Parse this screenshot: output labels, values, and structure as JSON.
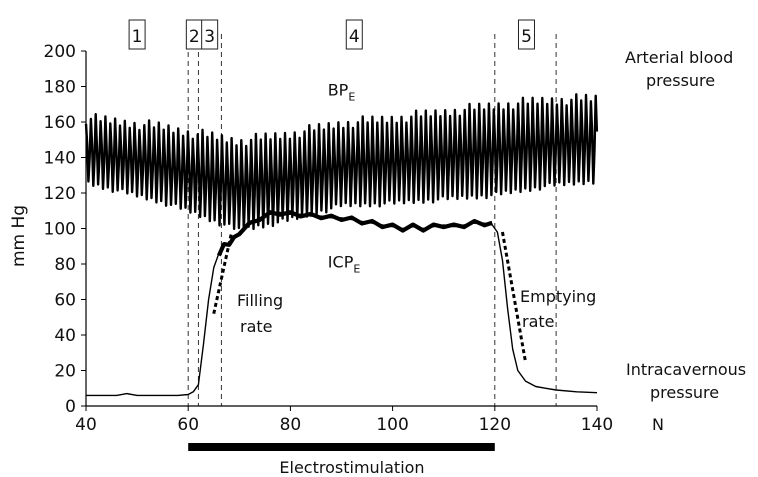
{
  "chart_data": {
    "type": "line",
    "ylabel": "mm Hg",
    "xlim": [
      40,
      140
    ],
    "ylim": [
      0,
      200
    ],
    "x_ticks": [
      "40",
      "60",
      "80",
      "100",
      "120",
      "140"
    ],
    "y_ticks": [
      "0",
      "20",
      "40",
      "60",
      "80",
      "100",
      "120",
      "140",
      "160",
      "180",
      "200"
    ],
    "phase_boundaries": [
      60,
      62,
      66.5,
      120,
      132
    ],
    "phases": [
      {
        "label": "1",
        "x": 50
      },
      {
        "label": "2",
        "x": 61.2
      },
      {
        "label": "3",
        "x": 64.2
      },
      {
        "label": "4",
        "x": 92.5
      },
      {
        "label": "5",
        "x": 126.2
      }
    ],
    "series": [
      {
        "name_main": "BP",
        "name_sub": "E",
        "label_x": 90,
        "label_y": 175,
        "mean": [
          [
            40,
            144
          ],
          [
            55,
            136
          ],
          [
            60,
            132
          ],
          [
            70,
            124
          ],
          [
            80,
            129
          ],
          [
            90,
            136
          ],
          [
            100,
            138
          ],
          [
            110,
            141
          ],
          [
            120,
            144
          ],
          [
            130,
            148
          ],
          [
            140,
            150
          ]
        ],
        "amplitude": [
          [
            40,
            18
          ],
          [
            60,
            22
          ],
          [
            70,
            25
          ],
          [
            90,
            23
          ],
          [
            120,
            25
          ],
          [
            140,
            23
          ]
        ]
      },
      {
        "name_main": "ICP",
        "name_sub": "E",
        "label_x": 90.5,
        "label_y": 78,
        "values": [
          [
            40,
            6
          ],
          [
            46,
            6
          ],
          [
            48,
            7
          ],
          [
            50,
            6
          ],
          [
            58,
            6
          ],
          [
            60,
            6.5
          ],
          [
            61,
            8
          ],
          [
            62,
            12
          ],
          [
            63,
            35
          ],
          [
            64,
            60
          ],
          [
            65,
            78
          ],
          [
            66,
            86
          ],
          [
            67,
            90
          ],
          [
            68,
            92
          ],
          [
            69,
            94
          ],
          [
            70,
            98
          ],
          [
            72,
            102
          ],
          [
            74,
            106
          ],
          [
            76,
            108
          ],
          [
            78,
            109
          ],
          [
            80,
            108
          ],
          [
            82,
            108
          ],
          [
            84,
            107
          ],
          [
            86,
            107
          ],
          [
            88,
            106
          ],
          [
            90,
            106
          ],
          [
            92,
            105
          ],
          [
            94,
            104
          ],
          [
            96,
            103
          ],
          [
            98,
            102
          ],
          [
            100,
            101
          ],
          [
            102,
            100
          ],
          [
            104,
            101
          ],
          [
            106,
            100
          ],
          [
            108,
            101
          ],
          [
            110,
            102
          ],
          [
            112,
            101
          ],
          [
            114,
            102
          ],
          [
            116,
            103
          ],
          [
            118,
            103
          ],
          [
            119.5,
            102
          ],
          [
            120.5,
            98
          ],
          [
            121.5,
            82
          ],
          [
            122.5,
            55
          ],
          [
            123.5,
            32
          ],
          [
            124.5,
            20
          ],
          [
            126,
            14
          ],
          [
            128,
            11
          ],
          [
            130,
            10
          ],
          [
            132,
            9
          ],
          [
            136,
            8
          ],
          [
            140,
            7.5
          ]
        ]
      }
    ],
    "rate_lines": [
      {
        "from": [
          65,
          52
        ],
        "to": [
          68.5,
          98
        ]
      },
      {
        "from": [
          121.5,
          98
        ],
        "to": [
          126,
          25
        ]
      }
    ],
    "annotations": {
      "arterial": [
        "Arterial blood",
        "pressure"
      ],
      "intracavernous": [
        "Intracavernous",
        "pressure"
      ],
      "filling": [
        "Filling",
        "rate"
      ],
      "emptying": [
        "Emptying",
        "rate"
      ],
      "n_label": "N",
      "stim_label": "Electrostimulation"
    },
    "stimulation": {
      "start": 60,
      "end": 120
    },
    "grid": false
  }
}
